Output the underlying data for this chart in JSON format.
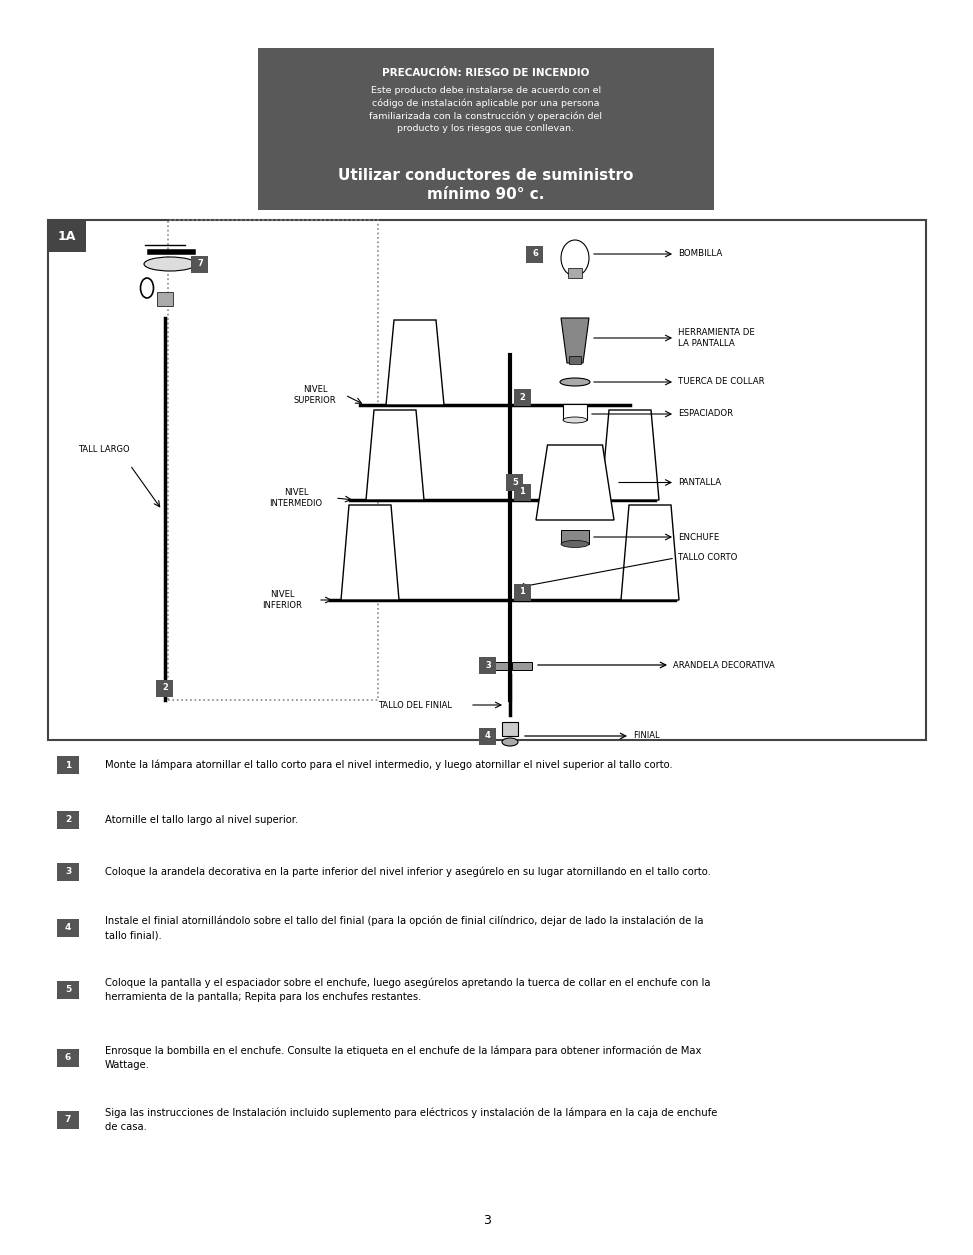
{
  "bg_color": "#ffffff",
  "warning_box_color": "#595959",
  "warning_title": "PRECAUCIÓN: RIESGO DE INCENDIO",
  "warning_body": "Este producto debe instalarse de acuerdo con el\ncódigo de instalación aplicable por una persona\nfamiliarizada con la construcción y operación del\nproducto y los riesgos que conllevan.",
  "warning_bold": "Utilizar conductores de suministro\nmínimo 90° c.",
  "instructions": [
    {
      "num": "1",
      "text": "Monte la lámpara atornillar el tallo corto para el nivel intermedio, y luego atornillar el nivel superior al tallo corto."
    },
    {
      "num": "2",
      "text": "Atornille el tallo largo al nivel superior."
    },
    {
      "num": "3",
      "text": "Coloque la arandela decorativa en la parte inferior del nivel inferior y asegúrelo en su lugar atornillando en el tallo corto."
    },
    {
      "num": "4",
      "text": "Instale el finial atornillándolo sobre el tallo del finial (para la opción de finial cilíndrico, dejar de lado la instalación de la\ntallo finial)."
    },
    {
      "num": "5",
      "text": "Coloque la pantalla y el espaciador sobre el enchufe, luego asegúrelos apretando la tuerca de collar en el enchufe con la\nherramienta de la pantalla; Repita para los enchufes restantes."
    },
    {
      "num": "6",
      "text": "Enrosque la bombilla en el enchufe. Consulte la etiqueta en el enchufe de la lámpara para obtener información de Max\nWattage."
    },
    {
      "num": "7",
      "text": "Siga las instrucciones de Instalación incluido suplemento para eléctricos y instalación de la lámpara en la caja de enchufe\nde casa."
    }
  ],
  "page_number": "3",
  "num_box_color": "#555555"
}
